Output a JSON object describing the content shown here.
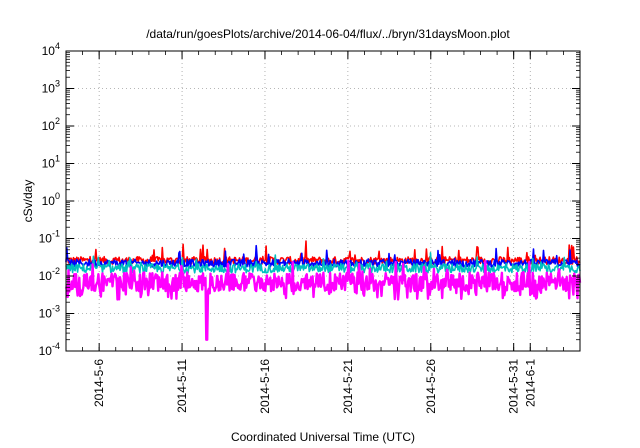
{
  "chart_data": {
    "type": "line",
    "title": "/data/run/goesPlots/archive/2014-06-04/flux/../bryn/31daysMoon.plot",
    "xlabel": "Coordinated Universal Time (UTC)",
    "ylabel": "cSv/day",
    "y_scale": "log",
    "ylim": [
      0.0001,
      10000
    ],
    "xlim": [
      "2014-05-04",
      "2014-06-04"
    ],
    "y_ticks": [
      {
        "base": "10",
        "exp": "-4"
      },
      {
        "base": "10",
        "exp": "-3"
      },
      {
        "base": "10",
        "exp": "-2"
      },
      {
        "base": "10",
        "exp": "-1"
      },
      {
        "base": "10",
        "exp": "0"
      },
      {
        "base": "10",
        "exp": "1"
      },
      {
        "base": "10",
        "exp": "2"
      },
      {
        "base": "10",
        "exp": "3"
      },
      {
        "base": "10",
        "exp": "4"
      }
    ],
    "x_ticks": [
      {
        "label": "2014-5-6",
        "date": "2014-05-06"
      },
      {
        "label": "2014-5-11",
        "date": "2014-05-11"
      },
      {
        "label": "2014-5-16",
        "date": "2014-05-16"
      },
      {
        "label": "2014-5-21",
        "date": "2014-05-21"
      },
      {
        "label": "2014-5-26",
        "date": "2014-05-26"
      },
      {
        "label": "2014-5-31",
        "date": "2014-05-31"
      },
      {
        "label": "2014-6-1",
        "date": "2014-06-01"
      }
    ],
    "grid": true,
    "series": [
      {
        "color": "#ff0000",
        "level": 0.026,
        "jitter": 0.1,
        "spikes": 0.45
      },
      {
        "color": "#0000ff",
        "level": 0.022,
        "jitter": 0.1,
        "spikes": 0.4
      },
      {
        "color": "#00c0c0",
        "level": 0.016,
        "jitter": 0.12,
        "spikes": 0.3
      },
      {
        "color": "#ff00ff",
        "level": 0.007,
        "jitter": 0.25,
        "spikes": 0.45
      }
    ],
    "dip": {
      "date": "2014-05-12T12:00:00",
      "value": 0.0002
    }
  }
}
